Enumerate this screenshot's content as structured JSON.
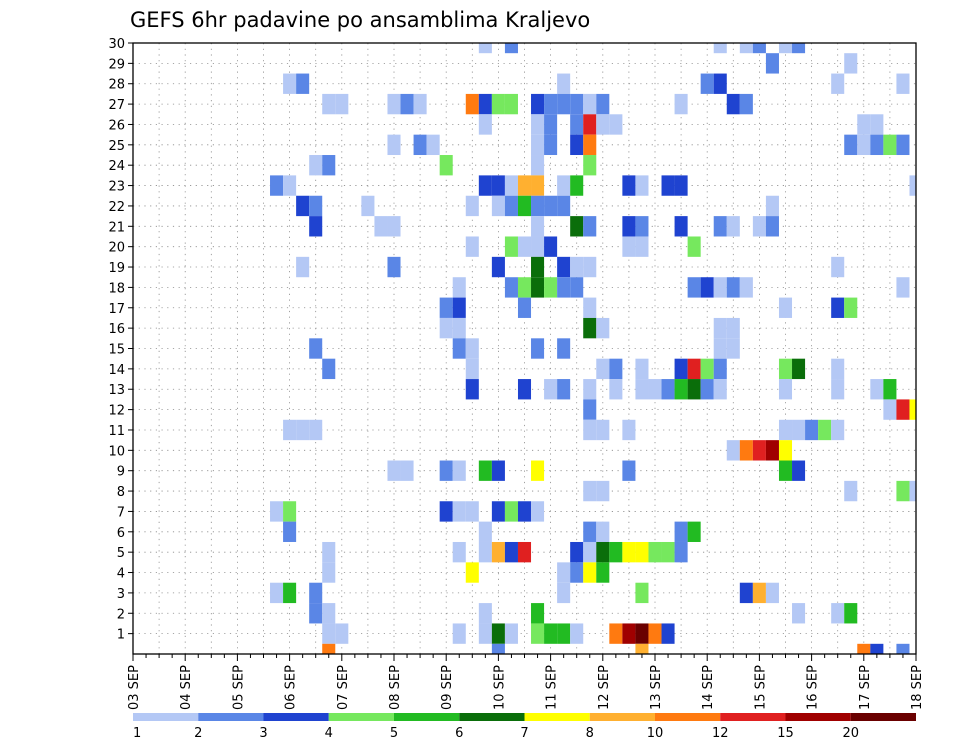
{
  "chart_data": {
    "type": "heatmap",
    "title": "GEFS 6hr padavine po ansamblima Kraljevo",
    "xlabel": "",
    "ylabel": "",
    "x_tick_labels": [
      "03 SEP",
      "04 SEP",
      "05 SEP",
      "06 SEP",
      "07 SEP",
      "08 SEP",
      "09 SEP",
      "10 SEP",
      "11 SEP",
      "12 SEP",
      "13 SEP",
      "14 SEP",
      "15 SEP",
      "16 SEP",
      "17 SEP",
      "18 SEP"
    ],
    "y_tick_labels": [
      "1",
      "2",
      "3",
      "4",
      "5",
      "6",
      "7",
      "8",
      "9",
      "10",
      "11",
      "12",
      "13",
      "14",
      "15",
      "16",
      "17",
      "18",
      "19",
      "20",
      "21",
      "22",
      "23",
      "24",
      "25",
      "26",
      "27",
      "28",
      "29",
      "30"
    ],
    "xlim": [
      0,
      60
    ],
    "ylim": [
      0,
      30
    ],
    "grid": true,
    "x_units": "6-hour steps from 03 SEP",
    "y_units": "ensemble member",
    "legend": {
      "placement": "bottom",
      "labels": [
        "1",
        "2",
        "3",
        "4",
        "5",
        "6",
        "7",
        "8",
        "10",
        "12",
        "15",
        "20"
      ],
      "colors": [
        "#b4c8f5",
        "#5a86e6",
        "#1f43d0",
        "#76e85e",
        "#22bb22",
        "#0a6e0a",
        "#ffff00",
        "#ffb030",
        "#ff7a10",
        "#e02020",
        "#a00000",
        "#6a0000"
      ]
    },
    "cells": [
      [
        27,
        30,
        0
      ],
      [
        29,
        30,
        1
      ],
      [
        45,
        30,
        0
      ],
      [
        47,
        30,
        0
      ],
      [
        48,
        30,
        1
      ],
      [
        50,
        30,
        0
      ],
      [
        51,
        30,
        1
      ],
      [
        49,
        29,
        1
      ],
      [
        55,
        29,
        0
      ],
      [
        12,
        28,
        0
      ],
      [
        13,
        28,
        1
      ],
      [
        33,
        28,
        0
      ],
      [
        44,
        28,
        1
      ],
      [
        45,
        28,
        2
      ],
      [
        54,
        28,
        0
      ],
      [
        59,
        28,
        0
      ],
      [
        15,
        27,
        0
      ],
      [
        16,
        27,
        0
      ],
      [
        20,
        27,
        0
      ],
      [
        21,
        27,
        1
      ],
      [
        22,
        27,
        0
      ],
      [
        26,
        27,
        8
      ],
      [
        27,
        27,
        2
      ],
      [
        28,
        27,
        3
      ],
      [
        29,
        27,
        3
      ],
      [
        31,
        27,
        2
      ],
      [
        32,
        27,
        1
      ],
      [
        33,
        27,
        1
      ],
      [
        34,
        27,
        1
      ],
      [
        35,
        27,
        0
      ],
      [
        36,
        27,
        1
      ],
      [
        42,
        27,
        0
      ],
      [
        46,
        27,
        2
      ],
      [
        47,
        27,
        1
      ],
      [
        27,
        26,
        0
      ],
      [
        31,
        26,
        0
      ],
      [
        32,
        26,
        1
      ],
      [
        34,
        26,
        1
      ],
      [
        35,
        26,
        9
      ],
      [
        36,
        26,
        0
      ],
      [
        37,
        26,
        0
      ],
      [
        56,
        26,
        0
      ],
      [
        57,
        26,
        0
      ],
      [
        20,
        25,
        0
      ],
      [
        22,
        25,
        1
      ],
      [
        23,
        25,
        0
      ],
      [
        31,
        25,
        0
      ],
      [
        32,
        25,
        1
      ],
      [
        34,
        25,
        2
      ],
      [
        35,
        25,
        8
      ],
      [
        55,
        25,
        1
      ],
      [
        56,
        25,
        0
      ],
      [
        57,
        25,
        1
      ],
      [
        58,
        25,
        3
      ],
      [
        59,
        25,
        1
      ],
      [
        14,
        24,
        0
      ],
      [
        15,
        24,
        1
      ],
      [
        24,
        24,
        3
      ],
      [
        31,
        24,
        0
      ],
      [
        35,
        24,
        3
      ],
      [
        11,
        23,
        1
      ],
      [
        12,
        23,
        0
      ],
      [
        27,
        23,
        2
      ],
      [
        28,
        23,
        2
      ],
      [
        29,
        23,
        0
      ],
      [
        30,
        23,
        7
      ],
      [
        31,
        23,
        7
      ],
      [
        33,
        23,
        0
      ],
      [
        34,
        23,
        4
      ],
      [
        38,
        23,
        2
      ],
      [
        39,
        23,
        0
      ],
      [
        41,
        23,
        2
      ],
      [
        42,
        23,
        2
      ],
      [
        60,
        23,
        0
      ],
      [
        13,
        22,
        2
      ],
      [
        14,
        22,
        1
      ],
      [
        18,
        22,
        0
      ],
      [
        26,
        22,
        0
      ],
      [
        28,
        22,
        0
      ],
      [
        29,
        22,
        1
      ],
      [
        30,
        22,
        4
      ],
      [
        31,
        22,
        1
      ],
      [
        32,
        22,
        1
      ],
      [
        33,
        22,
        1
      ],
      [
        49,
        22,
        0
      ],
      [
        14,
        21,
        2
      ],
      [
        19,
        21,
        0
      ],
      [
        20,
        21,
        0
      ],
      [
        31,
        21,
        0
      ],
      [
        34,
        21,
        5
      ],
      [
        35,
        21,
        1
      ],
      [
        38,
        21,
        2
      ],
      [
        39,
        21,
        1
      ],
      [
        42,
        21,
        2
      ],
      [
        45,
        21,
        1
      ],
      [
        46,
        21,
        0
      ],
      [
        48,
        21,
        0
      ],
      [
        49,
        21,
        1
      ],
      [
        26,
        20,
        0
      ],
      [
        29,
        20,
        3
      ],
      [
        30,
        20,
        0
      ],
      [
        31,
        20,
        0
      ],
      [
        32,
        20,
        2
      ],
      [
        38,
        20,
        0
      ],
      [
        39,
        20,
        0
      ],
      [
        43,
        20,
        3
      ],
      [
        13,
        19,
        0
      ],
      [
        20,
        19,
        1
      ],
      [
        28,
        19,
        2
      ],
      [
        31,
        19,
        5
      ],
      [
        33,
        19,
        2
      ],
      [
        34,
        19,
        0
      ],
      [
        35,
        19,
        0
      ],
      [
        54,
        19,
        0
      ],
      [
        25,
        18,
        0
      ],
      [
        29,
        18,
        1
      ],
      [
        30,
        18,
        3
      ],
      [
        31,
        18,
        5
      ],
      [
        32,
        18,
        3
      ],
      [
        33,
        18,
        1
      ],
      [
        34,
        18,
        1
      ],
      [
        43,
        18,
        1
      ],
      [
        44,
        18,
        2
      ],
      [
        45,
        18,
        0
      ],
      [
        46,
        18,
        1
      ],
      [
        47,
        18,
        0
      ],
      [
        59,
        18,
        0
      ],
      [
        24,
        17,
        1
      ],
      [
        25,
        17,
        2
      ],
      [
        30,
        17,
        1
      ],
      [
        35,
        17,
        0
      ],
      [
        50,
        17,
        0
      ],
      [
        54,
        17,
        2
      ],
      [
        55,
        17,
        3
      ],
      [
        24,
        16,
        0
      ],
      [
        25,
        16,
        0
      ],
      [
        35,
        16,
        5
      ],
      [
        36,
        16,
        0
      ],
      [
        45,
        16,
        0
      ],
      [
        46,
        16,
        0
      ],
      [
        14,
        15,
        1
      ],
      [
        25,
        15,
        1
      ],
      [
        26,
        15,
        0
      ],
      [
        31,
        15,
        1
      ],
      [
        33,
        15,
        1
      ],
      [
        45,
        15,
        0
      ],
      [
        46,
        15,
        0
      ],
      [
        15,
        14,
        1
      ],
      [
        26,
        14,
        0
      ],
      [
        36,
        14,
        0
      ],
      [
        37,
        14,
        1
      ],
      [
        39,
        14,
        0
      ],
      [
        42,
        14,
        2
      ],
      [
        43,
        14,
        9
      ],
      [
        44,
        14,
        3
      ],
      [
        45,
        14,
        1
      ],
      [
        50,
        14,
        3
      ],
      [
        51,
        14,
        5
      ],
      [
        54,
        14,
        0
      ],
      [
        26,
        13,
        2
      ],
      [
        30,
        13,
        2
      ],
      [
        32,
        13,
        0
      ],
      [
        33,
        13,
        1
      ],
      [
        35,
        13,
        0
      ],
      [
        37,
        13,
        0
      ],
      [
        39,
        13,
        0
      ],
      [
        40,
        13,
        0
      ],
      [
        41,
        13,
        1
      ],
      [
        42,
        13,
        4
      ],
      [
        43,
        13,
        5
      ],
      [
        44,
        13,
        1
      ],
      [
        45,
        13,
        0
      ],
      [
        50,
        13,
        0
      ],
      [
        54,
        13,
        0
      ],
      [
        57,
        13,
        0
      ],
      [
        58,
        13,
        4
      ],
      [
        35,
        12,
        1
      ],
      [
        58,
        12,
        0
      ],
      [
        59,
        12,
        9
      ],
      [
        60,
        12,
        6
      ],
      [
        12,
        11,
        0
      ],
      [
        13,
        11,
        0
      ],
      [
        14,
        11,
        0
      ],
      [
        35,
        11,
        0
      ],
      [
        36,
        11,
        0
      ],
      [
        38,
        11,
        0
      ],
      [
        50,
        11,
        0
      ],
      [
        51,
        11,
        0
      ],
      [
        52,
        11,
        1
      ],
      [
        53,
        11,
        3
      ],
      [
        54,
        11,
        0
      ],
      [
        46,
        10,
        0
      ],
      [
        47,
        10,
        8
      ],
      [
        48,
        10,
        9
      ],
      [
        49,
        10,
        10
      ],
      [
        50,
        10,
        6
      ],
      [
        20,
        9,
        0
      ],
      [
        21,
        9,
        0
      ],
      [
        24,
        9,
        1
      ],
      [
        25,
        9,
        0
      ],
      [
        27,
        9,
        4
      ],
      [
        28,
        9,
        2
      ],
      [
        31,
        9,
        6
      ],
      [
        38,
        9,
        1
      ],
      [
        50,
        9,
        4
      ],
      [
        51,
        9,
        2
      ],
      [
        35,
        8,
        0
      ],
      [
        36,
        8,
        0
      ],
      [
        55,
        8,
        0
      ],
      [
        59,
        8,
        3
      ],
      [
        60,
        8,
        0
      ],
      [
        11,
        7,
        0
      ],
      [
        12,
        7,
        3
      ],
      [
        24,
        7,
        2
      ],
      [
        25,
        7,
        0
      ],
      [
        26,
        7,
        0
      ],
      [
        28,
        7,
        2
      ],
      [
        29,
        7,
        3
      ],
      [
        30,
        7,
        2
      ],
      [
        31,
        7,
        0
      ],
      [
        12,
        6,
        1
      ],
      [
        27,
        6,
        0
      ],
      [
        35,
        6,
        1
      ],
      [
        36,
        6,
        0
      ],
      [
        42,
        6,
        1
      ],
      [
        43,
        6,
        4
      ],
      [
        15,
        5,
        0
      ],
      [
        25,
        5,
        0
      ],
      [
        27,
        5,
        0
      ],
      [
        28,
        5,
        7
      ],
      [
        29,
        5,
        2
      ],
      [
        30,
        5,
        9
      ],
      [
        34,
        5,
        2
      ],
      [
        35,
        5,
        0
      ],
      [
        36,
        5,
        5
      ],
      [
        37,
        5,
        4
      ],
      [
        38,
        5,
        6
      ],
      [
        39,
        5,
        6
      ],
      [
        40,
        5,
        3
      ],
      [
        41,
        5,
        3
      ],
      [
        42,
        5,
        1
      ],
      [
        15,
        4,
        0
      ],
      [
        26,
        4,
        6
      ],
      [
        33,
        4,
        0
      ],
      [
        34,
        4,
        1
      ],
      [
        35,
        4,
        6
      ],
      [
        36,
        4,
        4
      ],
      [
        11,
        3,
        0
      ],
      [
        12,
        3,
        4
      ],
      [
        14,
        3,
        1
      ],
      [
        33,
        3,
        0
      ],
      [
        39,
        3,
        3
      ],
      [
        47,
        3,
        2
      ],
      [
        48,
        3,
        7
      ],
      [
        49,
        3,
        0
      ],
      [
        14,
        2,
        1
      ],
      [
        15,
        2,
        0
      ],
      [
        27,
        2,
        0
      ],
      [
        31,
        2,
        4
      ],
      [
        51,
        2,
        0
      ],
      [
        54,
        2,
        0
      ],
      [
        55,
        2,
        4
      ],
      [
        15,
        1,
        0
      ],
      [
        16,
        1,
        0
      ],
      [
        25,
        1,
        0
      ],
      [
        27,
        1,
        0
      ],
      [
        28,
        1,
        5
      ],
      [
        29,
        1,
        0
      ],
      [
        31,
        1,
        3
      ],
      [
        32,
        1,
        4
      ],
      [
        33,
        1,
        4
      ],
      [
        34,
        1,
        0
      ],
      [
        37,
        1,
        8
      ],
      [
        38,
        1,
        10
      ],
      [
        39,
        1,
        11
      ],
      [
        40,
        1,
        8
      ],
      [
        41,
        1,
        2
      ],
      [
        15,
        0,
        8
      ],
      [
        28,
        0,
        1
      ],
      [
        39,
        0,
        7
      ],
      [
        56,
        0,
        8
      ],
      [
        57,
        0,
        2
      ],
      [
        59,
        0,
        1
      ]
    ]
  }
}
